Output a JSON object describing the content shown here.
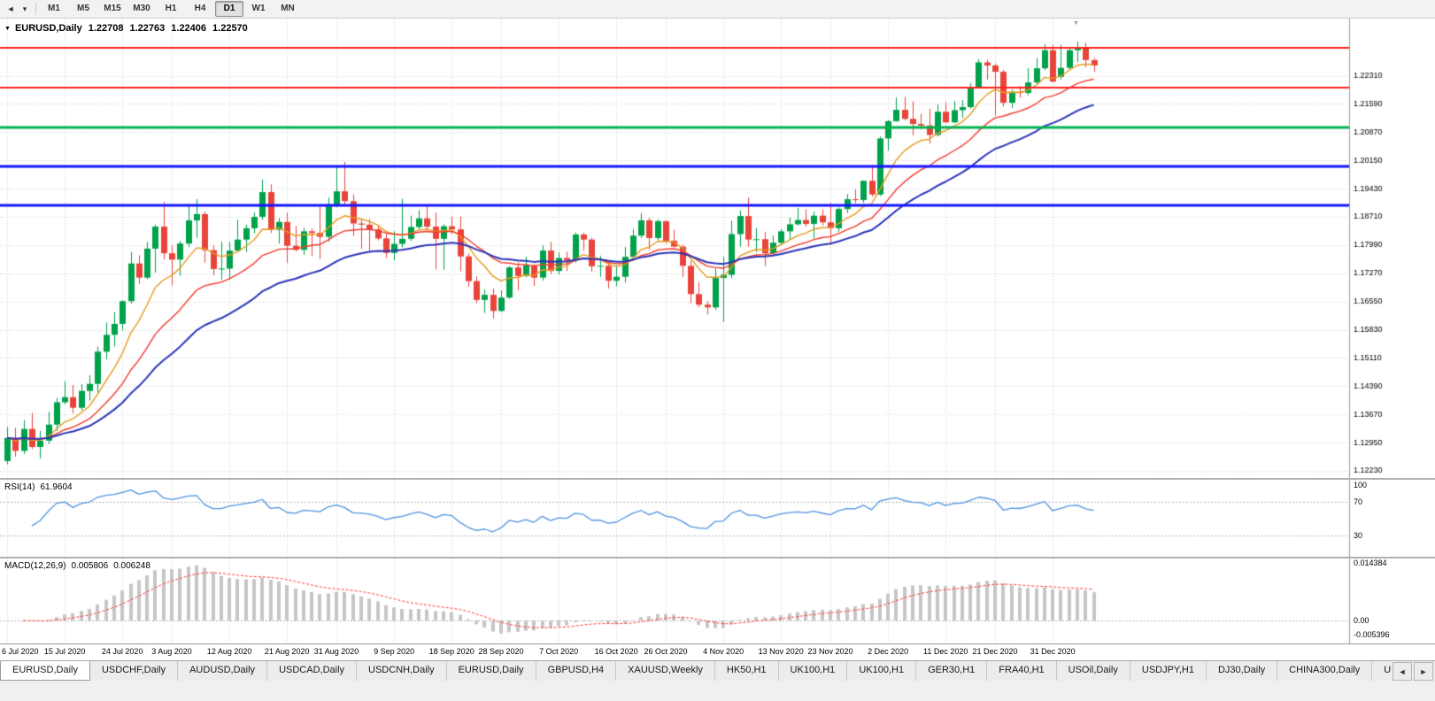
{
  "toolbar": {
    "timeframes": [
      "M1",
      "M5",
      "M15",
      "M30",
      "H1",
      "H4",
      "D1",
      "W1",
      "MN"
    ],
    "active_timeframe": "D1",
    "cursor_icon": "◄",
    "dropdown_icon": "▾"
  },
  "chart": {
    "symbol_period": "EURUSD,Daily",
    "ohlc": {
      "open": "1.22708",
      "high": "1.22763",
      "low": "1.22406",
      "close": "1.22570"
    },
    "symbol_marker_icon": "▼",
    "shift_marker_icon": "▼"
  },
  "indicators": {
    "rsi": {
      "label": "RSI(14)",
      "value": "61.9604",
      "period": 14,
      "levels": [
        70,
        30
      ],
      "axis_labels": [
        "100",
        "70",
        "30"
      ]
    },
    "macd": {
      "label": "MACD(12,26,9)",
      "macd_value": "0.005806",
      "signal_value": "0.006248",
      "fast": 12,
      "slow": 26,
      "signal": 9,
      "axis_labels": [
        "0.014384",
        "0.00",
        "-0.005396"
      ]
    }
  },
  "colors": {
    "background": "#ffffff",
    "grid": "#d4d4d4",
    "axis_text": "#000000",
    "bull": "#00a14b",
    "bear": "#e8443a",
    "rsi_line": "#4f94e0",
    "macd_hist": "#c6c6c6",
    "macd_signal": "#ff3b30"
  },
  "chart_data": {
    "type": "candlestick",
    "symbol": "EURUSD",
    "timeframe": "Daily",
    "x_labels": [
      "6 Jul 2020",
      "15 Jul 2020",
      "24 Jul 2020",
      "3 Aug 2020",
      "12 Aug 2020",
      "21 Aug 2020",
      "31 Aug 2020",
      "9 Sep 2020",
      "18 Sep 2020",
      "28 Sep 2020",
      "7 Oct 2020",
      "16 Oct 2020",
      "26 Oct 2020",
      "4 Nov 2020",
      "13 Nov 2020",
      "23 Nov 2020",
      "2 Dec 2020",
      "11 Dec 2020",
      "21 Dec 2020",
      "31 Dec 2020"
    ],
    "x_label_indices": [
      0,
      7,
      14,
      20,
      27,
      34,
      40,
      47,
      54,
      60,
      67,
      74,
      80,
      87,
      94,
      100,
      107,
      114,
      120,
      127
    ],
    "y_ticks": [
      1.2231,
      1.2159,
      1.2087,
      1.2015,
      1.1943,
      1.1871,
      1.1799,
      1.1727,
      1.1655,
      1.1583,
      1.1511,
      1.1439,
      1.1367,
      1.1295,
      1.1223
    ],
    "h_lines": [
      {
        "price": 1.23022,
        "label": "1.23022",
        "color": "#ff1f1f",
        "width": 2
      },
      {
        "price": 1.22012,
        "label": "1.22012",
        "color": "#ff1f1f",
        "width": 2
      },
      {
        "price": 1.21,
        "label": "1.21000",
        "color": "#00b14e",
        "width": 3
      },
      {
        "price": 1.19992,
        "label": "1.19992",
        "color": "#1414ff",
        "width": 3
      },
      {
        "price": 1.19008,
        "label": "1.19008",
        "color": "#1414ff",
        "width": 3
      }
    ],
    "current_price": {
      "price": 1.2257,
      "label": "1.22570",
      "color": "#3f3f3f"
    },
    "moving_averages": [
      {
        "name": "ma-fast",
        "period": 8,
        "color": "#e69b1e",
        "width": 1.4
      },
      {
        "name": "ma-medium",
        "period": 17,
        "color": "#f23a2e",
        "width": 1.4
      },
      {
        "name": "ma-slow",
        "period": 30,
        "color": "#2a35b8",
        "width": 2
      }
    ],
    "candles": [
      [
        1.1248,
        1.1335,
        1.124,
        1.1307
      ],
      [
        1.1307,
        1.1333,
        1.1259,
        1.1274
      ],
      [
        1.1274,
        1.1352,
        1.1266,
        1.133
      ],
      [
        1.133,
        1.1371,
        1.1279,
        1.1284
      ],
      [
        1.1284,
        1.1325,
        1.1254,
        1.13
      ],
      [
        1.13,
        1.1374,
        1.1292,
        1.1341
      ],
      [
        1.1341,
        1.1409,
        1.1325,
        1.1398
      ],
      [
        1.1398,
        1.1452,
        1.1392,
        1.1411
      ],
      [
        1.1411,
        1.1442,
        1.137,
        1.1384
      ],
      [
        1.1384,
        1.1444,
        1.1377,
        1.1427
      ],
      [
        1.1427,
        1.1467,
        1.1402,
        1.1445
      ],
      [
        1.1445,
        1.154,
        1.1422,
        1.1527
      ],
      [
        1.1527,
        1.1601,
        1.1507,
        1.157
      ],
      [
        1.157,
        1.1628,
        1.154,
        1.1598
      ],
      [
        1.1598,
        1.1658,
        1.1581,
        1.1656
      ],
      [
        1.1656,
        1.1782,
        1.165,
        1.1752
      ],
      [
        1.1752,
        1.1773,
        1.17,
        1.1716
      ],
      [
        1.1716,
        1.1807,
        1.1712,
        1.179
      ],
      [
        1.179,
        1.1851,
        1.1729,
        1.1846
      ],
      [
        1.1846,
        1.1909,
        1.1762,
        1.1778
      ],
      [
        1.1778,
        1.1797,
        1.1696,
        1.1762
      ],
      [
        1.1762,
        1.181,
        1.1721,
        1.1803
      ],
      [
        1.1803,
        1.1905,
        1.1794,
        1.1862
      ],
      [
        1.1862,
        1.1916,
        1.1817,
        1.1878
      ],
      [
        1.1878,
        1.1884,
        1.1754,
        1.1786
      ],
      [
        1.1786,
        1.1798,
        1.1722,
        1.1738
      ],
      [
        1.1738,
        1.1808,
        1.1711,
        1.1739
      ],
      [
        1.1739,
        1.1807,
        1.171,
        1.1785
      ],
      [
        1.1785,
        1.1864,
        1.1782,
        1.1813
      ],
      [
        1.1813,
        1.1851,
        1.1781,
        1.1842
      ],
      [
        1.1842,
        1.1882,
        1.1829,
        1.1871
      ],
      [
        1.1871,
        1.1966,
        1.1863,
        1.1934
      ],
      [
        1.1934,
        1.1954,
        1.183,
        1.1838
      ],
      [
        1.1838,
        1.1868,
        1.1803,
        1.1858
      ],
      [
        1.1858,
        1.1882,
        1.1754,
        1.1797
      ],
      [
        1.1797,
        1.1848,
        1.1782,
        1.1787
      ],
      [
        1.1787,
        1.1843,
        1.1774,
        1.1834
      ],
      [
        1.1834,
        1.1841,
        1.1771,
        1.183
      ],
      [
        1.183,
        1.19,
        1.1763,
        1.182
      ],
      [
        1.182,
        1.192,
        1.1808,
        1.1903
      ],
      [
        1.1903,
        1.1997,
        1.1896,
        1.1936
      ],
      [
        1.1936,
        1.2011,
        1.1901,
        1.1911
      ],
      [
        1.1911,
        1.1928,
        1.1822,
        1.1854
      ],
      [
        1.1854,
        1.1865,
        1.1789,
        1.1851
      ],
      [
        1.1851,
        1.1865,
        1.1781,
        1.1839
      ],
      [
        1.1839,
        1.1849,
        1.1811,
        1.1816
      ],
      [
        1.1816,
        1.1828,
        1.1766,
        1.1779
      ],
      [
        1.1779,
        1.1834,
        1.176,
        1.1802
      ],
      [
        1.1802,
        1.1917,
        1.1793,
        1.1815
      ],
      [
        1.1815,
        1.1874,
        1.1809,
        1.1845
      ],
      [
        1.1845,
        1.1888,
        1.1839,
        1.1867
      ],
      [
        1.1867,
        1.19,
        1.1836,
        1.1846
      ],
      [
        1.1846,
        1.1882,
        1.1737,
        1.1815
      ],
      [
        1.1815,
        1.1852,
        1.1736,
        1.1847
      ],
      [
        1.1847,
        1.1872,
        1.1826,
        1.1839
      ],
      [
        1.1839,
        1.1872,
        1.1732,
        1.177
      ],
      [
        1.177,
        1.1778,
        1.1692,
        1.1707
      ],
      [
        1.1707,
        1.1719,
        1.1651,
        1.1659
      ],
      [
        1.1659,
        1.1686,
        1.1626,
        1.1672
      ],
      [
        1.1672,
        1.1688,
        1.1612,
        1.1631
      ],
      [
        1.1631,
        1.1683,
        1.1628,
        1.1665
      ],
      [
        1.1665,
        1.1745,
        1.1662,
        1.1742
      ],
      [
        1.1742,
        1.1755,
        1.1684,
        1.172
      ],
      [
        1.172,
        1.1769,
        1.1717,
        1.1747
      ],
      [
        1.1747,
        1.1751,
        1.1695,
        1.1716
      ],
      [
        1.1716,
        1.1798,
        1.1708,
        1.1785
      ],
      [
        1.1785,
        1.1807,
        1.1725,
        1.1733
      ],
      [
        1.1733,
        1.1781,
        1.1724,
        1.1766
      ],
      [
        1.1766,
        1.1782,
        1.1733,
        1.176
      ],
      [
        1.176,
        1.1831,
        1.1754,
        1.1826
      ],
      [
        1.1826,
        1.183,
        1.1785,
        1.1813
      ],
      [
        1.1813,
        1.1818,
        1.1731,
        1.1745
      ],
      [
        1.1745,
        1.1772,
        1.1718,
        1.1746
      ],
      [
        1.1746,
        1.1758,
        1.1688,
        1.1708
      ],
      [
        1.1708,
        1.1747,
        1.1694,
        1.1718
      ],
      [
        1.1718,
        1.1794,
        1.1703,
        1.1769
      ],
      [
        1.1769,
        1.184,
        1.176,
        1.1823
      ],
      [
        1.1823,
        1.1881,
        1.1817,
        1.1862
      ],
      [
        1.1862,
        1.1868,
        1.1787,
        1.1817
      ],
      [
        1.1817,
        1.1864,
        1.1811,
        1.186
      ],
      [
        1.186,
        1.1861,
        1.1803,
        1.181
      ],
      [
        1.181,
        1.1838,
        1.1793,
        1.1795
      ],
      [
        1.1795,
        1.18,
        1.1717,
        1.1746
      ],
      [
        1.1746,
        1.1759,
        1.165,
        1.1674
      ],
      [
        1.1674,
        1.1704,
        1.164,
        1.1647
      ],
      [
        1.1647,
        1.1656,
        1.1622,
        1.164
      ],
      [
        1.164,
        1.174,
        1.1633,
        1.1715
      ],
      [
        1.1715,
        1.177,
        1.1603,
        1.1723
      ],
      [
        1.1723,
        1.1861,
        1.1715,
        1.1827
      ],
      [
        1.1827,
        1.1887,
        1.1795,
        1.1873
      ],
      [
        1.1873,
        1.192,
        1.1795,
        1.1813
      ],
      [
        1.1813,
        1.1843,
        1.1781,
        1.1814
      ],
      [
        1.1814,
        1.1833,
        1.1745,
        1.1778
      ],
      [
        1.1778,
        1.1823,
        1.1771,
        1.1805
      ],
      [
        1.1805,
        1.184,
        1.1799,
        1.1834
      ],
      [
        1.1834,
        1.1869,
        1.1814,
        1.1852
      ],
      [
        1.1852,
        1.1894,
        1.1849,
        1.1863
      ],
      [
        1.1863,
        1.1891,
        1.1846,
        1.1853
      ],
      [
        1.1853,
        1.1884,
        1.1816,
        1.1874
      ],
      [
        1.1874,
        1.189,
        1.1849,
        1.1857
      ],
      [
        1.1857,
        1.1906,
        1.18,
        1.1842
      ],
      [
        1.1842,
        1.1895,
        1.1833,
        1.1891
      ],
      [
        1.1891,
        1.1929,
        1.1881,
        1.1916
      ],
      [
        1.1916,
        1.1941,
        1.1906,
        1.1914
      ],
      [
        1.1914,
        1.1964,
        1.1907,
        1.1963
      ],
      [
        1.1963,
        1.2003,
        1.1923,
        1.1928
      ],
      [
        1.1928,
        1.2076,
        1.1924,
        1.2071
      ],
      [
        1.2071,
        1.2118,
        1.204,
        1.2115
      ],
      [
        1.2115,
        1.2175,
        1.2114,
        1.2144
      ],
      [
        1.2144,
        1.2177,
        1.2117,
        1.2121
      ],
      [
        1.2121,
        1.2166,
        1.2079,
        1.2108
      ],
      [
        1.2108,
        1.2134,
        1.2095,
        1.2104
      ],
      [
        1.2104,
        1.2147,
        1.2058,
        1.208
      ],
      [
        1.208,
        1.2159,
        1.2076,
        1.2139
      ],
      [
        1.2139,
        1.2163,
        1.211,
        1.2112
      ],
      [
        1.2112,
        1.2167,
        1.211,
        1.2143
      ],
      [
        1.2143,
        1.2169,
        1.2123,
        1.2151
      ],
      [
        1.2151,
        1.2212,
        1.2147,
        1.2199
      ],
      [
        1.2199,
        1.2273,
        1.2198,
        1.2265
      ],
      [
        1.2265,
        1.2272,
        1.2221,
        1.2257
      ],
      [
        1.2257,
        1.2262,
        1.2129,
        1.2241
      ],
      [
        1.2241,
        1.2246,
        1.2152,
        1.2162
      ],
      [
        1.2162,
        1.2196,
        1.2149,
        1.219
      ],
      [
        1.219,
        1.2205,
        1.2175,
        1.2187
      ],
      [
        1.2187,
        1.225,
        1.2181,
        1.2214
      ],
      [
        1.2214,
        1.2276,
        1.2208,
        1.225
      ],
      [
        1.225,
        1.2311,
        1.2245,
        1.2296
      ],
      [
        1.2296,
        1.231,
        1.2214,
        1.2216
      ],
      [
        1.2228,
        1.231,
        1.2221,
        1.2251
      ],
      [
        1.2251,
        1.2303,
        1.2247,
        1.2296
      ],
      [
        1.2296,
        1.2318,
        1.2266,
        1.2303
      ],
      [
        1.2303,
        1.2315,
        1.2252,
        1.2271
      ],
      [
        1.22708,
        1.22763,
        1.22406,
        1.2257
      ]
    ]
  },
  "bottom_tabs": {
    "tabs": [
      {
        "label": "EURUSD,Daily",
        "active": true
      },
      {
        "label": "USDCHF,Daily",
        "active": false
      },
      {
        "label": "AUDUSD,Daily",
        "active": false
      },
      {
        "label": "USDCAD,Daily",
        "active": false
      },
      {
        "label": "USDCNH,Daily",
        "active": false
      },
      {
        "label": "EURUSD,Daily",
        "active": false
      },
      {
        "label": "GBPUSD,H4",
        "active": false
      },
      {
        "label": "XAUUSD,Weekly",
        "active": false
      },
      {
        "label": "HK50,H1",
        "active": false
      },
      {
        "label": "UK100,H1",
        "active": false
      },
      {
        "label": "UK100,H1",
        "active": false
      },
      {
        "label": "GER30,H1",
        "active": false
      },
      {
        "label": "FRA40,H1",
        "active": false
      },
      {
        "label": "USOil,Daily",
        "active": false
      },
      {
        "label": "USDJPY,H1",
        "active": false
      },
      {
        "label": "DJ30,Daily",
        "active": false
      },
      {
        "label": "CHINA300,Daily",
        "active": false
      }
    ],
    "partial_tab_label": "U",
    "scroll_left_icon": "◄",
    "scroll_right_icon": "►"
  }
}
